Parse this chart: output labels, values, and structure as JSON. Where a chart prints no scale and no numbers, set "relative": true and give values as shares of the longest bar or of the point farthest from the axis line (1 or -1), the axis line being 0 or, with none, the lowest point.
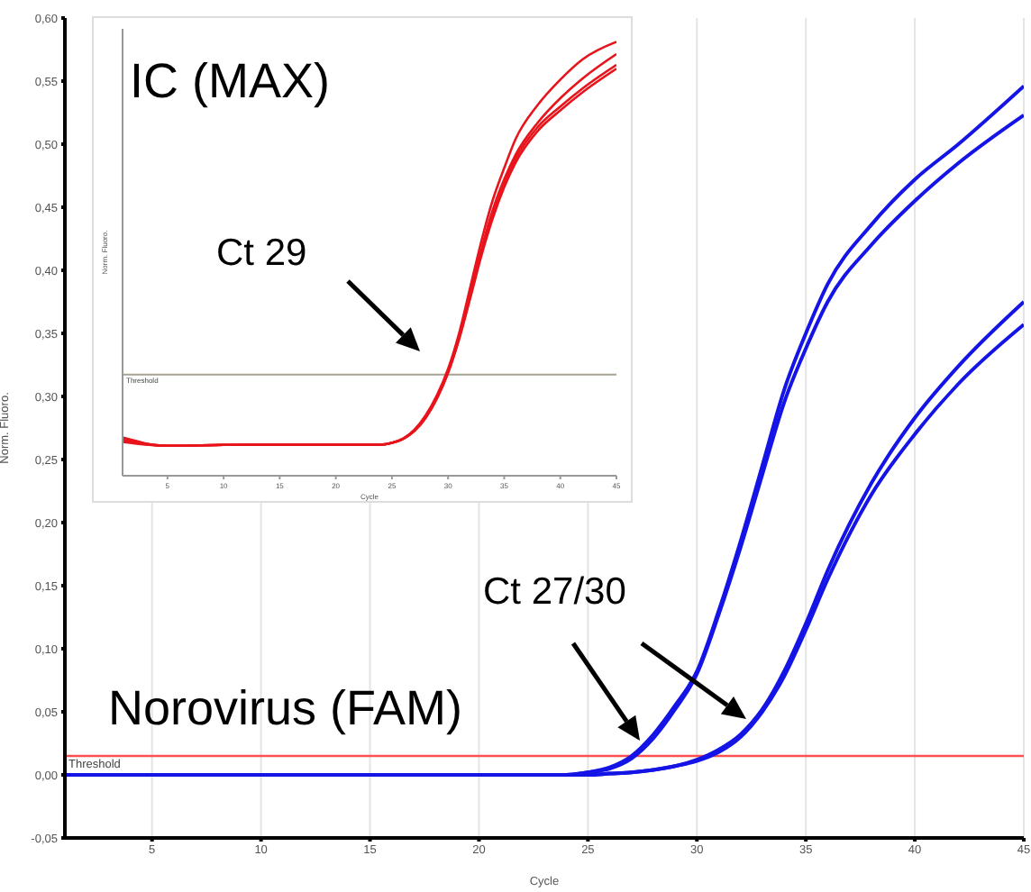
{
  "chart_data": [
    {
      "type": "line",
      "xlabel": "Cycle",
      "ylabel": "Norm. Fluoro.",
      "x": [
        1,
        5,
        10,
        15,
        20,
        24,
        25,
        26,
        27,
        28,
        29,
        30,
        31,
        32,
        33,
        34,
        35,
        36,
        38,
        40,
        42,
        45
      ],
      "series": [
        {
          "color": "#1414e6",
          "values": [
            0,
            0,
            0,
            0,
            0,
            0,
            0.002,
            0.006,
            0.015,
            0.032,
            0.055,
            0.082,
            0.13,
            0.185,
            0.245,
            0.305,
            0.35,
            0.389,
            0.436,
            0.472,
            0.5,
            0.546
          ]
        },
        {
          "color": "#1414e6",
          "values": [
            0,
            0,
            0,
            0,
            0,
            0,
            0.002,
            0.005,
            0.013,
            0.029,
            0.052,
            0.08,
            0.127,
            0.18,
            0.238,
            0.295,
            0.338,
            0.375,
            0.42,
            0.455,
            0.485,
            0.523
          ]
        },
        {
          "color": "#1414e6",
          "values": [
            0,
            0,
            0,
            0,
            0,
            0,
            0,
            0.001,
            0.002,
            0.004,
            0.007,
            0.012,
            0.02,
            0.032,
            0.052,
            0.082,
            0.12,
            0.162,
            0.231,
            0.283,
            0.324,
            0.375
          ]
        },
        {
          "color": "#1414e6",
          "values": [
            0,
            0,
            0,
            0,
            0,
            0,
            0,
            0.001,
            0.002,
            0.004,
            0.007,
            0.011,
            0.018,
            0.03,
            0.05,
            0.078,
            0.115,
            0.155,
            0.222,
            0.27,
            0.31,
            0.357
          ]
        }
      ],
      "xlim": [
        1,
        45
      ],
      "xticks": [
        5,
        10,
        15,
        20,
        25,
        30,
        35,
        40,
        45
      ],
      "ylim": [
        -0.05,
        0.6
      ],
      "yticks": [
        {
          "value": -0.05,
          "label": "-0,05"
        },
        {
          "value": 0,
          "label": "0,00"
        },
        {
          "value": 0.05,
          "label": "0,05"
        },
        {
          "value": 0.1,
          "label": "0,10"
        },
        {
          "value": 0.15,
          "label": "0,15"
        },
        {
          "value": 0.2,
          "label": "0,20"
        },
        {
          "value": 0.25,
          "label": "0,25"
        },
        {
          "value": 0.3,
          "label": "0,30"
        },
        {
          "value": 0.35,
          "label": "0,35"
        },
        {
          "value": 0.4,
          "label": "0,40"
        },
        {
          "value": 0.45,
          "label": "0,45"
        },
        {
          "value": 0.5,
          "label": "0,50"
        },
        {
          "value": 0.55,
          "label": "0,55"
        },
        {
          "value": 0.6,
          "label": "0,60"
        }
      ],
      "ref_lines": [
        {
          "axis": "y",
          "value": 0.015,
          "label": "Threshold",
          "color": "#ff5050"
        }
      ],
      "annotations": [
        "Norovirus (FAM)",
        "Ct 27/30"
      ],
      "grid": "x",
      "legend": false,
      "marker": "none",
      "line_style": "solid"
    },
    {
      "type": "line",
      "relative": true,
      "xlabel": "Cycle",
      "ylabel": "Norm. Fluoro.",
      "x": [
        1,
        5,
        10,
        15,
        20,
        24,
        25,
        26,
        27,
        28,
        29,
        30,
        31,
        32,
        33,
        34,
        35,
        36,
        38,
        40,
        42,
        45
      ],
      "series": [
        {
          "color": "#e8141c",
          "values": [
            0.088,
            0.069,
            0.071,
            0.072,
            0.072,
            0.072,
            0.076,
            0.086,
            0.106,
            0.139,
            0.185,
            0.246,
            0.33,
            0.437,
            0.544,
            0.637,
            0.709,
            0.775,
            0.855,
            0.913,
            0.96,
            1
          ]
        },
        {
          "color": "#e8141c",
          "values": [
            0.083,
            0.069,
            0.071,
            0.072,
            0.072,
            0.072,
            0.076,
            0.085,
            0.104,
            0.136,
            0.181,
            0.241,
            0.322,
            0.423,
            0.525,
            0.614,
            0.683,
            0.739,
            0.814,
            0.87,
            0.916,
            0.972
          ]
        },
        {
          "color": "#e8141c",
          "values": [
            0.08,
            0.069,
            0.071,
            0.072,
            0.072,
            0.072,
            0.076,
            0.085,
            0.103,
            0.134,
            0.179,
            0.238,
            0.319,
            0.415,
            0.516,
            0.602,
            0.672,
            0.73,
            0.804,
            0.851,
            0.893,
            0.947
          ]
        },
        {
          "color": "#e8141c",
          "values": [
            0.078,
            0.069,
            0.071,
            0.072,
            0.072,
            0.072,
            0.076,
            0.085,
            0.103,
            0.133,
            0.177,
            0.237,
            0.316,
            0.412,
            0.51,
            0.595,
            0.665,
            0.721,
            0.795,
            0.842,
            0.884,
            0.938
          ]
        }
      ],
      "xlim": [
        1,
        45
      ],
      "xticks": [
        5,
        10,
        15,
        20,
        25,
        30,
        35,
        40,
        45
      ],
      "tick_labels": "x",
      "ref_lines": [
        {
          "axis": "y",
          "value": 0.233,
          "label": "Threshold",
          "color": "#a8a290"
        }
      ],
      "annotations": [
        "IC (MAX)",
        "Ct 29"
      ],
      "grid": false,
      "legend": false,
      "marker": "none",
      "line_style": "solid"
    }
  ]
}
